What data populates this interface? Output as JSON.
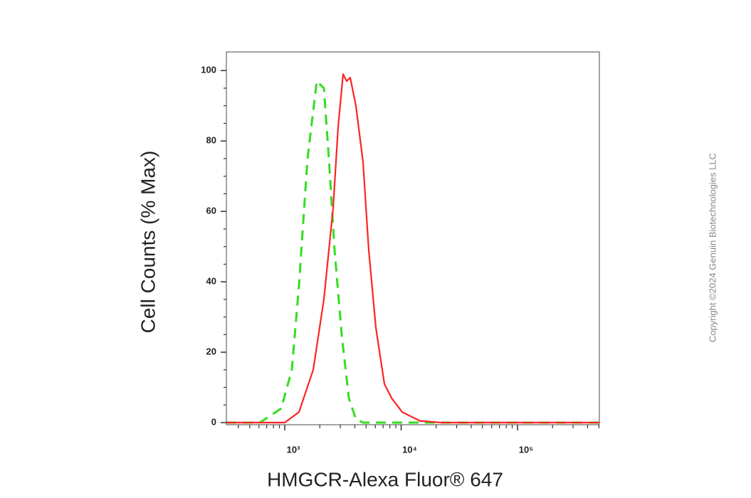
{
  "chart_data": {
    "type": "line",
    "ylabel": "Cell Counts (% Max)",
    "xlabel": "HMGCR-Alexa Fluor® 647",
    "annotation": "Copyright ©2024 Genuin Biotechnologies LLC",
    "xscale": "log",
    "xlim": [
      315,
      505000
    ],
    "ylim": [
      -0.6,
      105.3
    ],
    "xticks": [
      {
        "value": 1000,
        "label": "10³"
      },
      {
        "value": 10000,
        "label": "10⁴"
      },
      {
        "value": 100000,
        "label": "10⁵"
      }
    ],
    "xminorticks": [
      400,
      500,
      600,
      700,
      800,
      900,
      2000,
      3000,
      4000,
      5000,
      6000,
      7000,
      8000,
      9000,
      20000,
      30000,
      40000,
      50000,
      60000,
      70000,
      80000,
      90000,
      200000,
      300000,
      400000,
      500000
    ],
    "yticks": [
      0,
      20,
      40,
      60,
      80,
      100
    ],
    "yminorticks": [
      5,
      10,
      15,
      25,
      30,
      35,
      45,
      50,
      55,
      65,
      70,
      75,
      85,
      90,
      95
    ],
    "series": [
      {
        "color": "#33dd22",
        "dash": true,
        "x": [
          315,
          611,
          932,
          1151,
          1325,
          1569,
          1885,
          2170,
          2394,
          2680,
          3085,
          3552,
          4089,
          4708,
          505000
        ],
        "values": [
          0,
          0,
          4,
          15,
          39,
          75,
          97,
          95,
          75,
          49,
          25,
          7,
          1,
          0,
          0
        ]
      },
      {
        "color": "#ff2222",
        "dash": false,
        "x": [
          315,
          1000,
          1325,
          1757,
          2170,
          2606,
          2875,
          3173,
          3405,
          3654,
          4089,
          4708,
          5269,
          6066,
          7181,
          8270,
          10214,
          14523,
          22160,
          505000
        ],
        "values": [
          0,
          0,
          3,
          15,
          35,
          61,
          84,
          99,
          97,
          98,
          90,
          74,
          49,
          27,
          11,
          7,
          3,
          0.5,
          0,
          0
        ]
      }
    ]
  }
}
